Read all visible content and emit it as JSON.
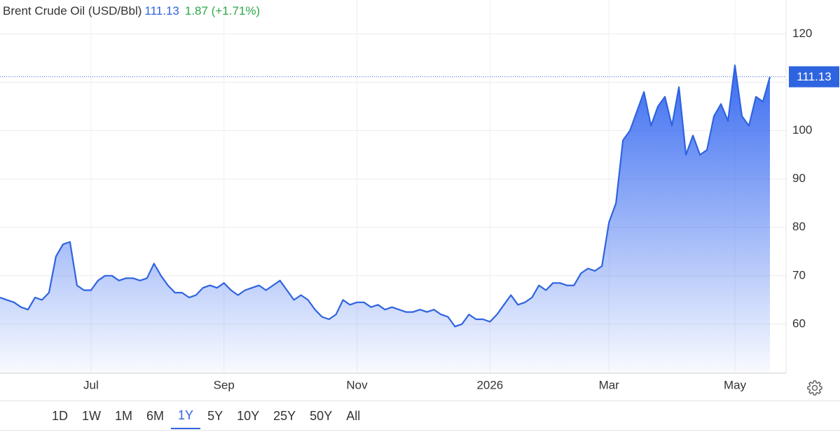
{
  "chart_data": {
    "type": "area",
    "title": "Brent Crude Oil (USD/Bbl)",
    "last_price": 111.13,
    "change_label": "1.87 (+1.71%)",
    "categories": [
      null,
      null,
      null,
      null,
      null,
      null,
      null,
      null,
      null,
      null,
      null,
      null,
      null,
      "Jul",
      null,
      null,
      null,
      null,
      null,
      null,
      null,
      null,
      null,
      null,
      null,
      null,
      null,
      null,
      null,
      null,
      null,
      null,
      "Sep",
      null,
      null,
      null,
      null,
      null,
      null,
      null,
      null,
      null,
      null,
      null,
      null,
      null,
      null,
      null,
      null,
      null,
      null,
      "Nov",
      null,
      null,
      null,
      null,
      null,
      null,
      null,
      null,
      null,
      null,
      null,
      null,
      null,
      null,
      null,
      null,
      null,
      null,
      "2026",
      null,
      null,
      null,
      null,
      null,
      null,
      null,
      null,
      null,
      null,
      null,
      null,
      null,
      null,
      null,
      null,
      "Mar",
      null,
      null,
      null,
      null,
      null,
      null,
      null,
      null,
      null,
      null,
      null,
      null,
      null,
      null,
      null,
      null,
      null,
      "May",
      null,
      null,
      null,
      null,
      null
    ],
    "series": [
      {
        "name": "Brent Crude Oil",
        "color": "#2f64e0",
        "values": [
          65.5,
          65,
          64.5,
          63.5,
          63,
          65.5,
          65,
          66.5,
          74,
          76.5,
          77,
          68,
          67,
          67,
          69,
          70,
          70,
          69,
          69.5,
          69.5,
          69,
          69.5,
          72.5,
          70,
          68,
          66.5,
          66.5,
          65.5,
          66,
          67.5,
          68,
          67.5,
          68.5,
          67,
          66,
          67,
          67.5,
          68,
          67,
          68,
          69,
          67,
          65,
          66,
          65,
          63,
          61.5,
          61,
          62,
          65,
          64,
          64.5,
          64.5,
          63.5,
          64,
          63,
          63.5,
          63,
          62.5,
          62.5,
          63,
          62.5,
          63,
          62,
          61.5,
          59.5,
          60,
          62,
          61,
          61,
          60.5,
          62,
          64,
          66,
          64,
          64.5,
          65.5,
          68,
          67,
          68.5,
          68.5,
          68,
          68,
          70.5,
          71.5,
          71,
          72,
          81,
          85,
          98,
          100,
          104,
          108,
          101,
          105,
          107,
          101,
          109,
          95,
          99,
          95,
          96,
          103,
          105.5,
          102,
          113.5,
          103,
          101,
          107,
          106,
          111.13
        ]
      }
    ],
    "ylim": [
      50,
      127
    ],
    "yticks": [
      60,
      70,
      80,
      90,
      100,
      110,
      120
    ],
    "grid": true
  },
  "controls": {
    "ranges": [
      "1D",
      "1W",
      "1M",
      "6M",
      "1Y",
      "5Y",
      "10Y",
      "25Y",
      "50Y",
      "All"
    ],
    "active": 4
  }
}
